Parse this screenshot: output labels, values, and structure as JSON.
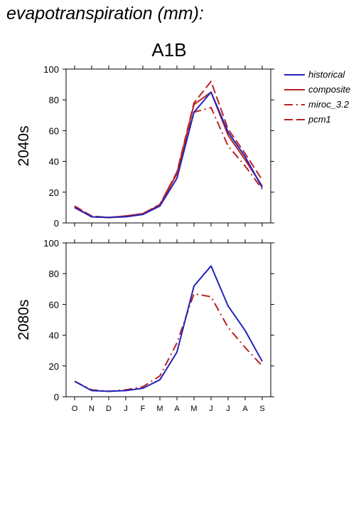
{
  "header": {
    "title": "evapotranspiration (mm):",
    "scenario": "A1B"
  },
  "colors": {
    "historical": "#2222bb",
    "projection": "#bb2222"
  },
  "legend": {
    "placement": "right",
    "items": [
      {
        "label": "historical",
        "style": "solid",
        "color": "#2222bb"
      },
      {
        "label": "composite",
        "style": "solid",
        "color": "#bb2222"
      },
      {
        "label": "miroc_3.2",
        "style": "dashdot",
        "color": "#bb2222"
      },
      {
        "label": "pcm1",
        "style": "dashed",
        "color": "#bb2222"
      }
    ]
  },
  "chart_data": [
    {
      "type": "line",
      "row_label": "2040s",
      "categories": [
        "O",
        "N",
        "D",
        "J",
        "F",
        "M",
        "A",
        "M",
        "J",
        "J",
        "A",
        "S"
      ],
      "ylim": [
        0,
        100
      ],
      "yticks": [
        "0",
        "20",
        "40",
        "60",
        "80",
        "100"
      ],
      "series": [
        {
          "name": "historical",
          "style": "solid",
          "color": "#2222bb",
          "values": [
            10,
            4,
            3.5,
            4,
            5.5,
            11,
            29,
            72,
            85,
            59,
            43,
            23
          ]
        },
        {
          "name": "composite",
          "style": "solid",
          "color": "#bb2222",
          "values": [
            10.5,
            4,
            3.5,
            4.5,
            6,
            11.5,
            32,
            77,
            85,
            57,
            41,
            24
          ]
        },
        {
          "name": "miroc_3.2",
          "style": "dashdot",
          "color": "#bb2222",
          "values": [
            10,
            4,
            3.5,
            4.5,
            6,
            12,
            33,
            72,
            75,
            50,
            37,
            22
          ]
        },
        {
          "name": "pcm1",
          "style": "dashed",
          "color": "#bb2222",
          "values": [
            11,
            4.5,
            3.5,
            4.5,
            6,
            12,
            33,
            78,
            92,
            61,
            45,
            28
          ]
        }
      ]
    },
    {
      "type": "line",
      "row_label": "2080s",
      "categories": [
        "O",
        "N",
        "D",
        "J",
        "F",
        "M",
        "A",
        "M",
        "J",
        "J",
        "A",
        "S"
      ],
      "ylim": [
        0,
        100
      ],
      "yticks": [
        "0",
        "20",
        "40",
        "60",
        "80",
        "100"
      ],
      "series": [
        {
          "name": "historical",
          "style": "solid",
          "color": "#2222bb",
          "values": [
            10,
            4,
            3.5,
            4,
            5.5,
            11,
            29,
            72,
            85,
            59,
            43,
            23
          ]
        },
        {
          "name": "miroc_3.2",
          "style": "dashdot",
          "color": "#bb2222",
          "values": [
            10,
            4.5,
            3.5,
            4.5,
            6.5,
            13.5,
            35,
            67,
            65,
            45,
            32,
            20
          ]
        }
      ]
    }
  ]
}
